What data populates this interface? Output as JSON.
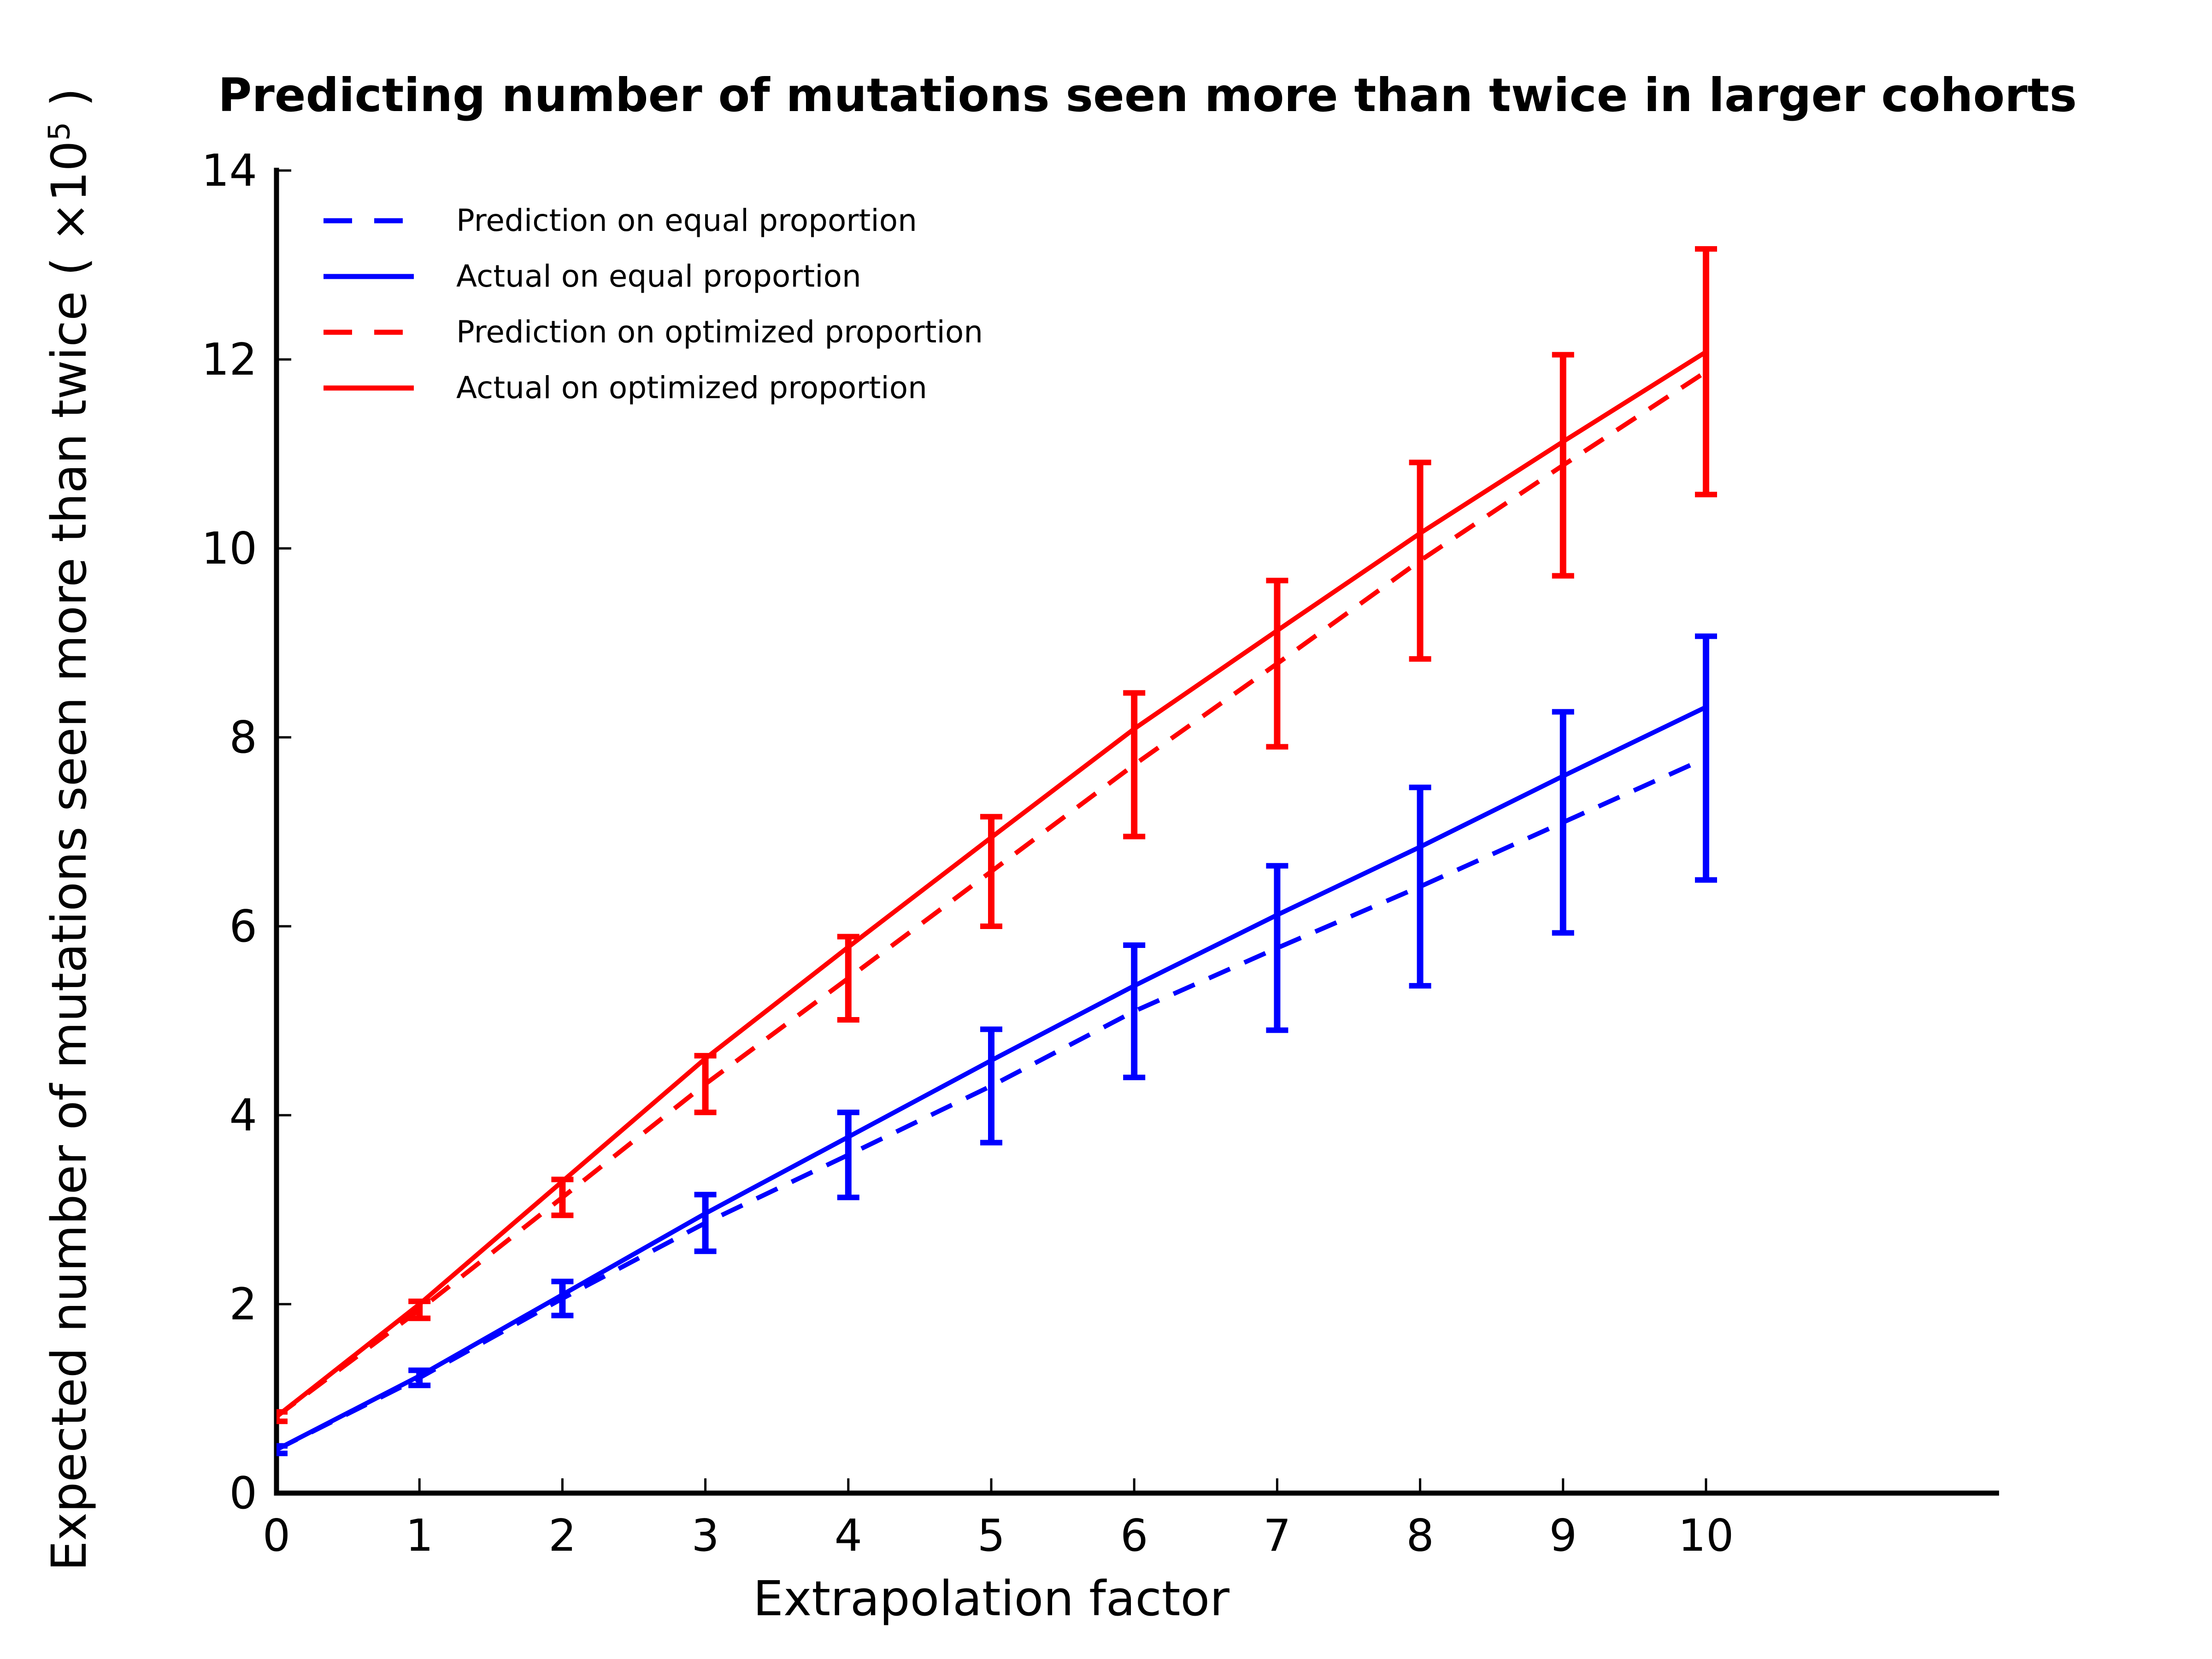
{
  "title": "Predicting number of mutations seen more than twice in larger cohorts",
  "xlabel": "Extrapolation factor",
  "ylabel": {
    "prefix": "Expected number of mutations seen more than twice ( ",
    "base": "×10",
    "exponent": "5",
    "suffix": " )"
  },
  "colors": {
    "equal_proportion": "#0000ff",
    "optimized_proportion": "#ff0000",
    "axis": "#000000",
    "background": "#ffffff"
  },
  "legend": [
    {
      "label": "Prediction on equal proportion",
      "color": "#0000ff",
      "style": "dashed"
    },
    {
      "label": "Actual on equal proportion",
      "color": "#0000ff",
      "style": "solid"
    },
    {
      "label": "Prediction on optimized proportion",
      "color": "#ff0000",
      "style": "dashed"
    },
    {
      "label": "Actual on optimized proportion",
      "color": "#ff0000",
      "style": "solid"
    }
  ],
  "chart_data": {
    "type": "line",
    "x": [
      0,
      1,
      2,
      3,
      4,
      5,
      6,
      7,
      8,
      9,
      10
    ],
    "series": [
      {
        "name": "Prediction on equal proportion",
        "color": "#0000ff",
        "style": "dashed",
        "values": [
          0.46,
          1.22,
          2.06,
          2.86,
          3.58,
          4.31,
          5.1,
          5.77,
          6.42,
          7.1,
          7.78
        ],
        "error": [
          0.04,
          0.08,
          0.18,
          0.3,
          0.45,
          0.6,
          0.7,
          0.87,
          1.05,
          1.17,
          1.29
        ]
      },
      {
        "name": "Actual on equal proportion",
        "color": "#0000ff",
        "style": "solid",
        "values": [
          0.46,
          1.24,
          2.1,
          2.96,
          3.77,
          4.58,
          5.37,
          6.12,
          6.84,
          7.59,
          8.32
        ]
      },
      {
        "name": "Prediction on optimized proportion",
        "color": "#ff0000",
        "style": "dashed",
        "values": [
          0.81,
          1.94,
          3.13,
          4.33,
          5.45,
          6.58,
          7.71,
          8.78,
          9.87,
          10.88,
          11.87
        ],
        "error": [
          0.05,
          0.09,
          0.19,
          0.3,
          0.44,
          0.58,
          0.76,
          0.88,
          1.04,
          1.17,
          1.3
        ]
      },
      {
        "name": "Actual on optimized proportion",
        "color": "#ff0000",
        "style": "solid",
        "values": [
          0.81,
          2.0,
          3.3,
          4.6,
          5.78,
          6.94,
          8.09,
          9.13,
          10.16,
          11.13,
          12.08
        ]
      }
    ],
    "xlabel": "Extrapolation factor",
    "ylabel": "Expected number of mutations seen more than twice ( ×10⁵ )",
    "title": "Predicting number of mutations seen more than twice in larger cohorts",
    "xlim": [
      0,
      12.05
    ],
    "ylim": [
      0,
      14
    ],
    "xticks": [
      0,
      1,
      2,
      3,
      4,
      5,
      6,
      7,
      8,
      9,
      10
    ],
    "yticks": [
      0,
      2,
      4,
      6,
      8,
      10,
      12,
      14
    ],
    "grid": false,
    "legend_position": "upper-left",
    "error_bars_on": "prediction series"
  }
}
